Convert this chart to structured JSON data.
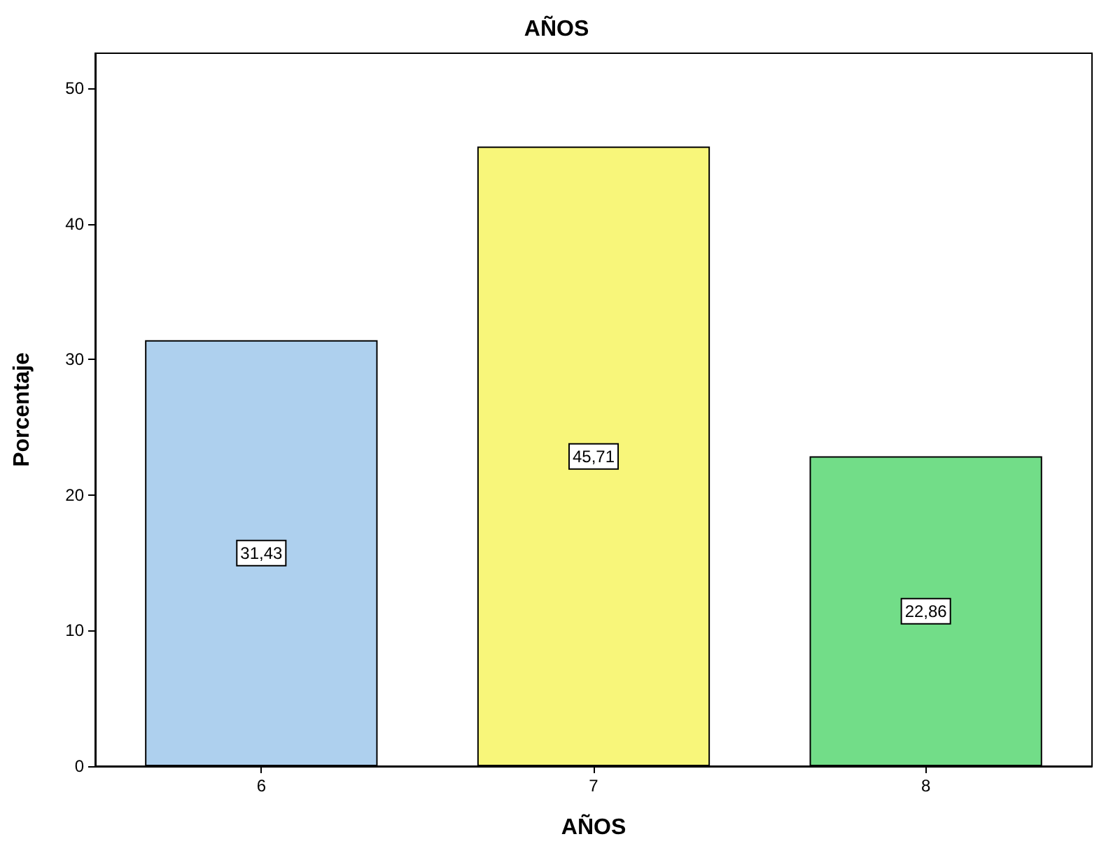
{
  "chart_data": {
    "type": "bar",
    "title": "AÑOS",
    "xlabel": "AÑOS",
    "ylabel": "Porcentaje",
    "categories": [
      "6",
      "7",
      "8"
    ],
    "values": [
      31.43,
      45.71,
      22.86
    ],
    "colors": [
      "#aed0ee",
      "#f8f67a",
      "#72dd88"
    ],
    "value_labels": [
      "31,43",
      "45,71",
      "22,86"
    ],
    "ylim": [
      0,
      52.6
    ],
    "yticks": [
      0,
      10,
      20,
      30,
      40,
      50
    ],
    "grid": false
  }
}
